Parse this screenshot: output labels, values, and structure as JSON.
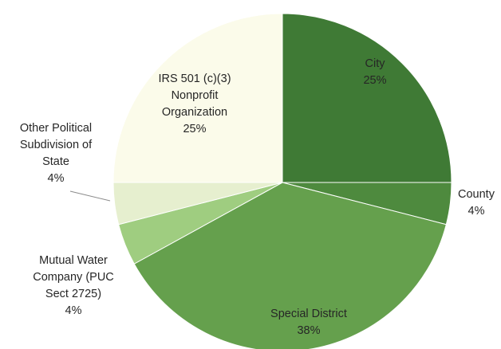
{
  "chart_data": {
    "type": "pie",
    "start_angle_deg": 0,
    "direction": "clockwise",
    "slices": [
      {
        "category": [
          "City"
        ],
        "percent_label": "25%",
        "value": 25,
        "color": "#3f7a35"
      },
      {
        "category": [
          "County"
        ],
        "percent_label": "4%",
        "value": 4,
        "color": "#4e8a3e"
      },
      {
        "category": [
          "Special District"
        ],
        "percent_label": "38%",
        "value": 38,
        "color": "#65a04d"
      },
      {
        "category": [
          "Mutual Water",
          "Company (PUC",
          "Sect 2725)"
        ],
        "percent_label": "4%",
        "value": 4,
        "color": "#9fcd80"
      },
      {
        "category": [
          "Other Political",
          "Subdivision of",
          "State"
        ],
        "percent_label": "4%",
        "value": 4,
        "color": "#e6efcf"
      },
      {
        "category": [
          "IRS 501 (c)(3)",
          "Nonprofit",
          "Organization"
        ],
        "percent_label": "25%",
        "value": 25,
        "color": "#fbfbea"
      }
    ]
  }
}
